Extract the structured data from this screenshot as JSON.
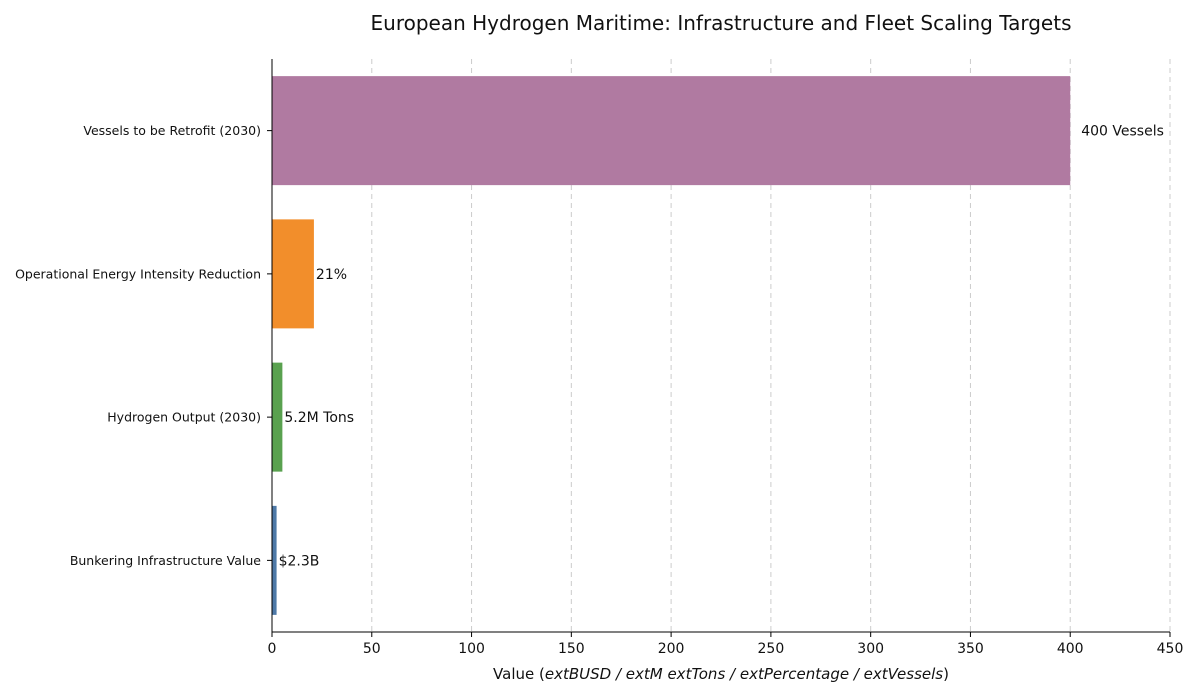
{
  "chart_data": {
    "type": "bar",
    "orientation": "horizontal",
    "title": "European Hydrogen Maritime: Infrastructure and Fleet Scaling Targets",
    "xlabel": {
      "prefix": "Value (",
      "italic": "extBUSD / extM extTons / extPercentage / extVessels",
      "suffix": ")"
    },
    "ylabel": "",
    "xlim": [
      0,
      450
    ],
    "xticks": [
      0,
      50,
      100,
      150,
      200,
      250,
      300,
      350,
      400,
      450
    ],
    "grid": "x-dashed",
    "categories": [
      "Vessels to be Retrofit (2030)",
      "Operational Energy Intensity Reduction",
      "Hydrogen Output (2030)",
      "Bunkering Infrastructure Value"
    ],
    "values": [
      400,
      21,
      5.2,
      2.3
    ],
    "data_labels": [
      "400 Vessels",
      "21%",
      "5.2M Tons",
      "$2.3B"
    ],
    "colors": [
      "#b07aa1",
      "#f28e2b",
      "#59a14f",
      "#4e79a7"
    ]
  }
}
